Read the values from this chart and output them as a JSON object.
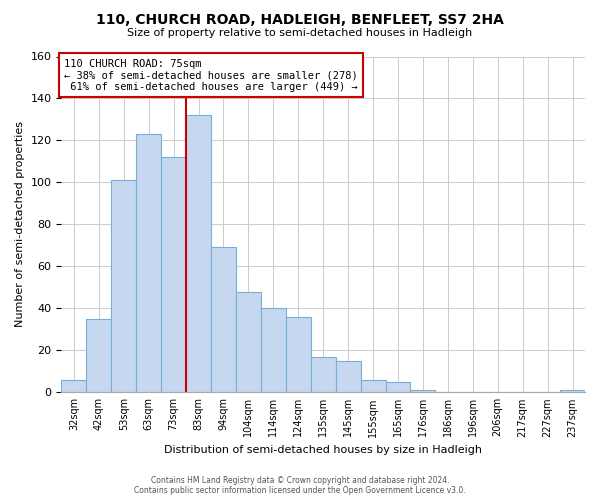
{
  "title": "110, CHURCH ROAD, HADLEIGH, BENFLEET, SS7 2HA",
  "subtitle": "Size of property relative to semi-detached houses in Hadleigh",
  "xlabel": "Distribution of semi-detached houses by size in Hadleigh",
  "ylabel": "Number of semi-detached properties",
  "footer_line1": "Contains HM Land Registry data © Crown copyright and database right 2024.",
  "footer_line2": "Contains public sector information licensed under the Open Government Licence v3.0.",
  "bin_labels": [
    "32sqm",
    "42sqm",
    "53sqm",
    "63sqm",
    "73sqm",
    "83sqm",
    "94sqm",
    "104sqm",
    "114sqm",
    "124sqm",
    "135sqm",
    "145sqm",
    "155sqm",
    "165sqm",
    "176sqm",
    "186sqm",
    "196sqm",
    "206sqm",
    "217sqm",
    "227sqm",
    "237sqm"
  ],
  "bin_values": [
    6,
    35,
    101,
    123,
    112,
    132,
    69,
    48,
    40,
    36,
    17,
    15,
    6,
    5,
    1,
    0,
    0,
    0,
    0,
    0,
    1
  ],
  "property_label": "110 CHURCH ROAD: 75sqm",
  "pct_smaller": 38,
  "pct_larger": 61,
  "count_smaller": 278,
  "count_larger": 449,
  "highlight_bin_index": 4,
  "bar_color": "#c5d8f0",
  "bar_edge_color": "#7aaed6",
  "highlight_line_color": "#cc0000",
  "box_edge_color": "#cc0000",
  "ylim": [
    0,
    160
  ],
  "yticks": [
    0,
    20,
    40,
    60,
    80,
    100,
    120,
    140,
    160
  ],
  "background_color": "#ffffff",
  "grid_color": "#cccccc"
}
